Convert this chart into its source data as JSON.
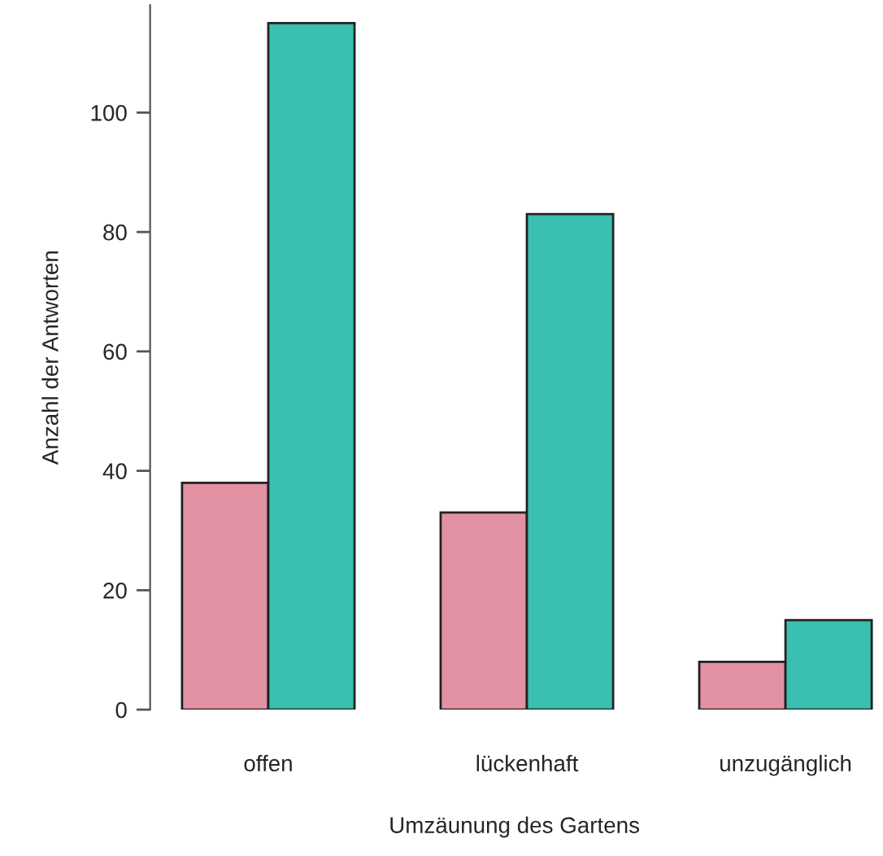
{
  "chart_data": {
    "type": "bar",
    "xlabel": "Umzäunung des Gartens",
    "ylabel": "Anzahl der Antworten",
    "categories": [
      "offen",
      "lückenhaft",
      "unzugänglich"
    ],
    "series": [
      {
        "color": "#e291a3",
        "values": [
          38,
          33,
          8
        ]
      },
      {
        "color": "#3bbfb0",
        "values": [
          115,
          83,
          15
        ]
      }
    ],
    "ylim": [
      0,
      118
    ],
    "yticks": [
      0,
      20,
      40,
      60,
      80,
      100
    ],
    "grid": false,
    "legend": false
  }
}
